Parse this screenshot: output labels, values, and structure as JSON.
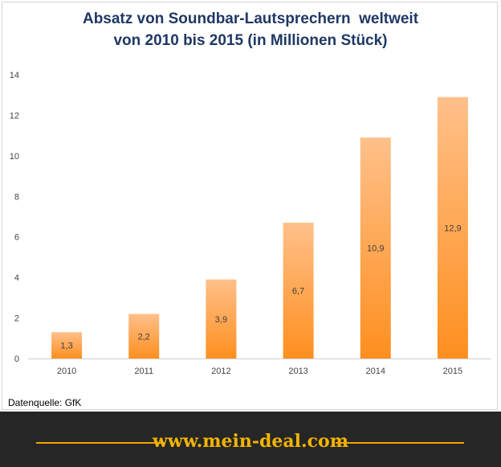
{
  "chart_data": {
    "type": "bar",
    "title_lines": [
      "Absatz von Soundbar-Lautsprechern  weltweit",
      "von 2010 bis 2015 (in Millionen Stück)"
    ],
    "categories": [
      "2010",
      "2011",
      "2012",
      "2013",
      "2014",
      "2015"
    ],
    "values": [
      1.3,
      2.2,
      3.9,
      6.7,
      10.9,
      12.9
    ],
    "data_labels": [
      "1,3",
      "2,2",
      "3,9",
      "6,7",
      "10,9",
      "12,9"
    ],
    "ylim": [
      0,
      14
    ],
    "yticks": [
      0,
      2,
      4,
      6,
      8,
      10,
      12,
      14
    ],
    "grid": false,
    "legend": "none",
    "bar_color_top": "#ffc08a",
    "bar_color_bottom": "#ff8f1f"
  },
  "source_note": "Datenquelle: GfK",
  "footer": {
    "url": "www.mein-deal.com",
    "background": "#262626",
    "accent": "#f2a300"
  }
}
